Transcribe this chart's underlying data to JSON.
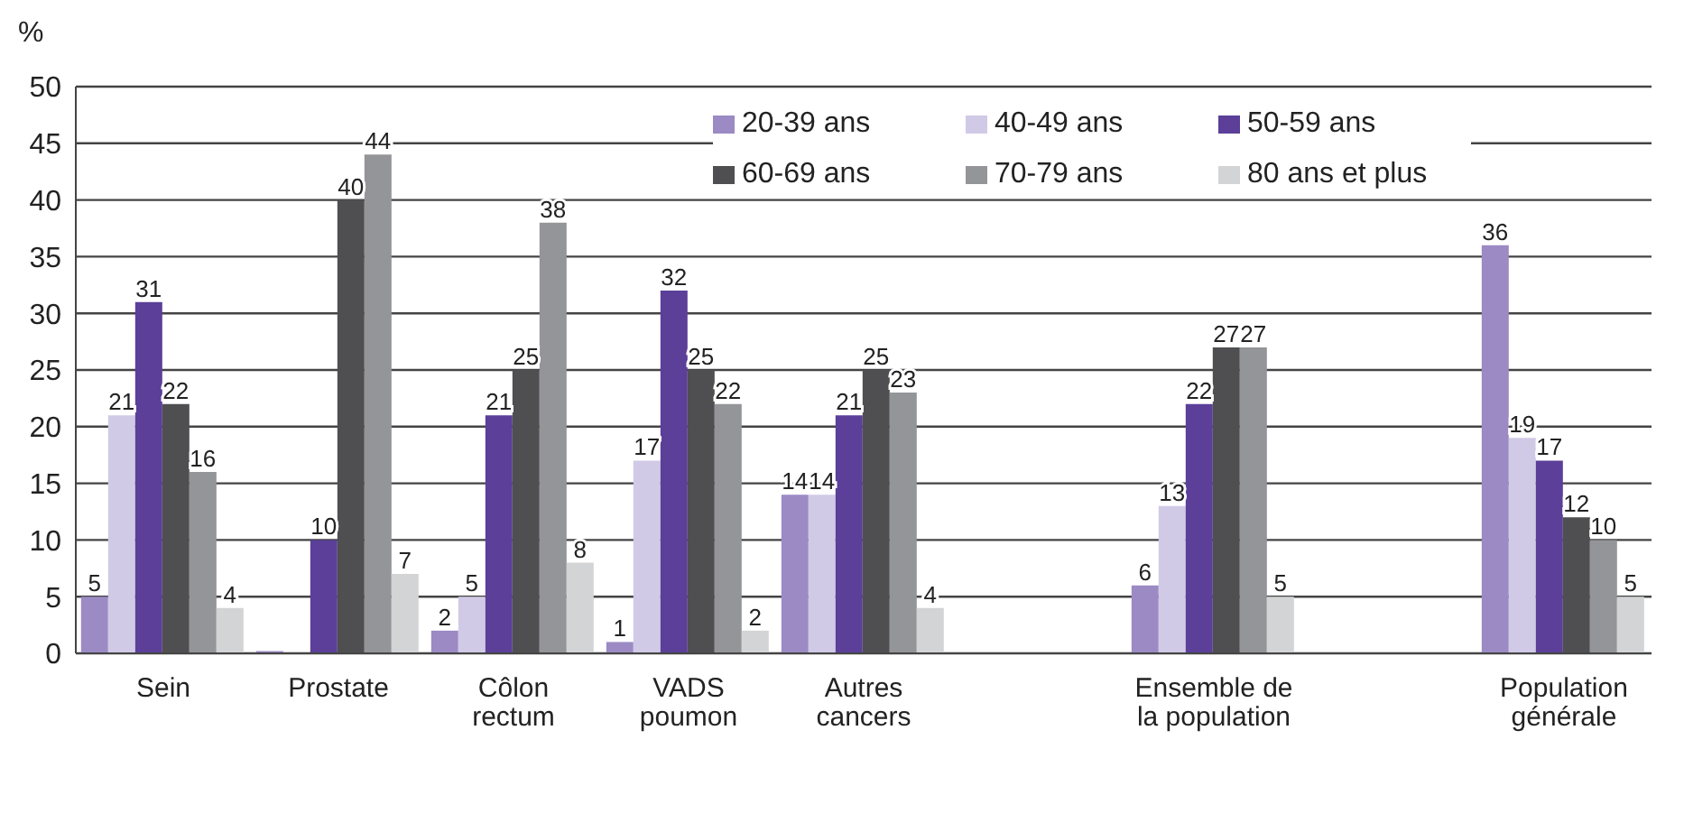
{
  "chart_data": {
    "type": "bar",
    "ylabel": "%",
    "categories": [
      "Sein",
      "Prostate",
      "Côlon\nrectum",
      "VADS\npoumon",
      "Autres\ncancers",
      null,
      "Ensemble de\nla population",
      null,
      "Population\ngénérale"
    ],
    "series": [
      {
        "name": "20-39 ans",
        "color": "#9b8ac4",
        "values": [
          5,
          0.2,
          2,
          1,
          14,
          null,
          6,
          null,
          36
        ],
        "value_labels": [
          "5",
          null,
          "2",
          "1",
          "14",
          null,
          "6",
          null,
          "36"
        ]
      },
      {
        "name": "40-49 ans",
        "color": "#d0cae6",
        "values": [
          21,
          0,
          5,
          17,
          14,
          null,
          13,
          null,
          19
        ],
        "value_labels": [
          "21",
          null,
          "5",
          "17",
          "14",
          null,
          "13",
          null,
          "19"
        ]
      },
      {
        "name": "50-59 ans",
        "color": "#5b3f98",
        "values": [
          31,
          10,
          21,
          32,
          21,
          null,
          22,
          null,
          17
        ],
        "value_labels": [
          "31",
          "10",
          "21",
          "32",
          "21",
          null,
          "22",
          null,
          "17"
        ]
      },
      {
        "name": "60-69 ans",
        "color": "#4f4f51",
        "values": [
          22,
          40,
          25,
          25,
          25,
          null,
          27,
          null,
          12
        ],
        "value_labels": [
          "22",
          "40",
          "25",
          "25",
          "25",
          null,
          "27",
          null,
          "12"
        ]
      },
      {
        "name": "70-79 ans",
        "color": "#949599",
        "values": [
          16,
          44,
          38,
          22,
          23,
          null,
          27,
          null,
          10
        ],
        "value_labels": [
          "16",
          "44",
          "38",
          "22",
          "23",
          null,
          "27",
          null,
          "10"
        ]
      },
      {
        "name": "80 ans et plus",
        "color": "#d3d4d6",
        "values": [
          4,
          7,
          8,
          2,
          4,
          null,
          5,
          null,
          5
        ],
        "value_labels": [
          "4",
          "7",
          "8",
          "2",
          "4",
          null,
          "5",
          null,
          "5"
        ]
      }
    ],
    "ylim": [
      0,
      50
    ],
    "yticks": [
      0,
      5,
      10,
      15,
      20,
      25,
      30,
      35,
      40,
      45,
      50
    ],
    "grid": "y",
    "legend": "top right"
  }
}
